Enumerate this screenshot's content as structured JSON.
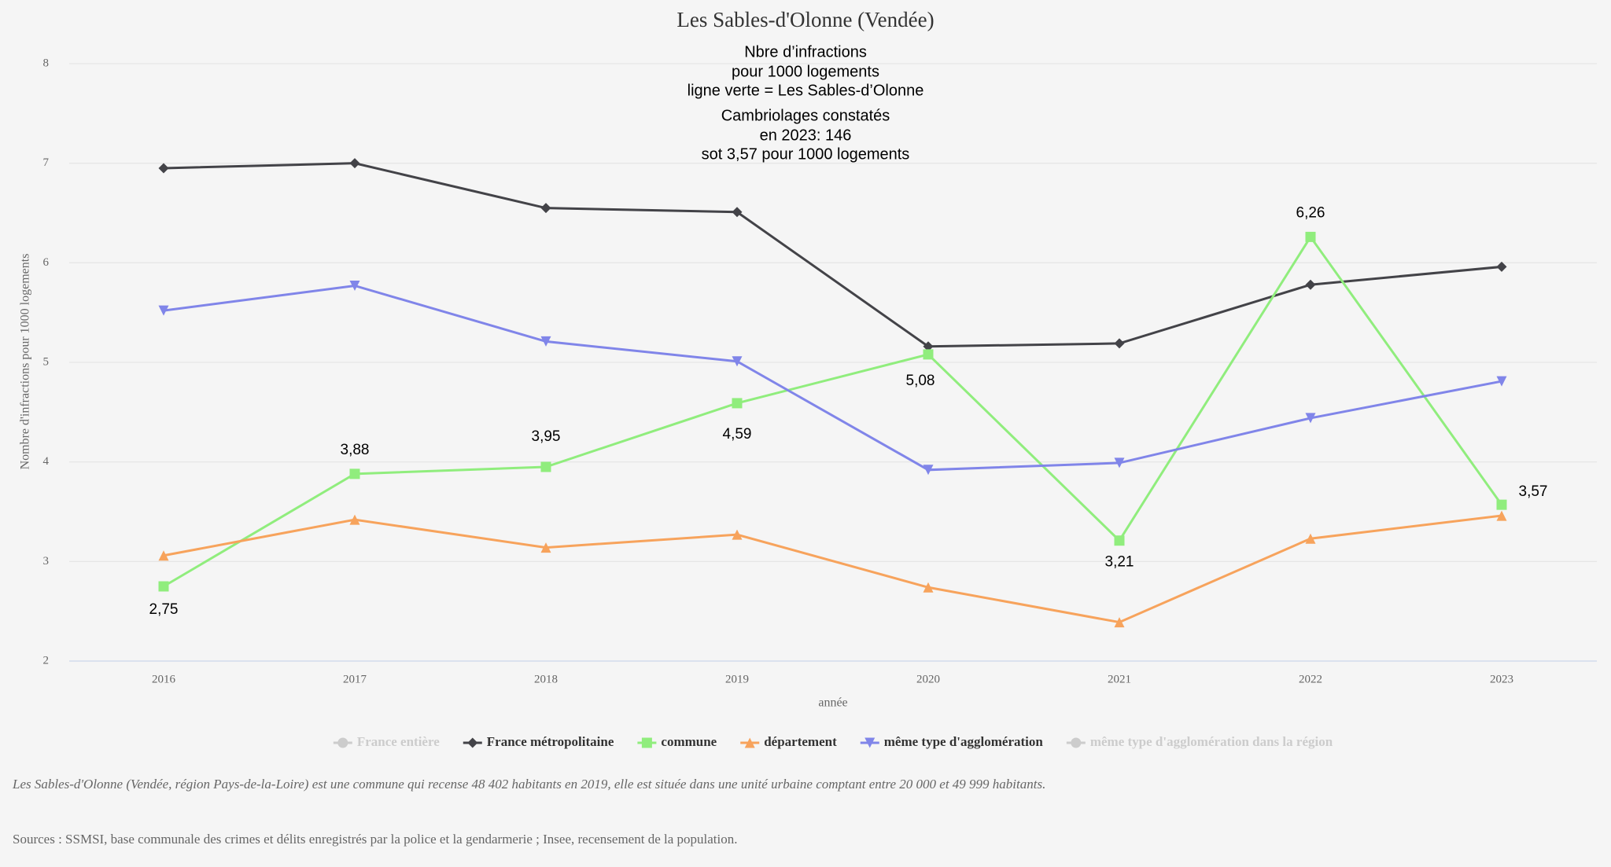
{
  "chart_data": {
    "type": "line",
    "title": "Les Sables-d'Olonne (Vendée)",
    "annotation": [
      "Nbre d’infractions",
      "pour 1000 logements",
      "ligne verte = Les Sables-d’Olonne",
      "Cambriolages constatés",
      "en 2023: 146",
      "sot 3,57 pour 1000 logements"
    ],
    "y_label": "Nombre d'infractions pour 1000 logements",
    "x_label": "année",
    "categories": [
      "2016",
      "2017",
      "2018",
      "2019",
      "2020",
      "2021",
      "2022",
      "2023"
    ],
    "ylim": [
      2,
      8
    ],
    "yticks": [
      2,
      3,
      4,
      5,
      6,
      7,
      8
    ],
    "grid": true,
    "series": [
      {
        "name": "France métropolitaine",
        "color": "#434348",
        "marker": "diamond",
        "values": [
          6.95,
          7.0,
          6.55,
          6.51,
          5.16,
          5.19,
          5.78,
          5.96
        ]
      },
      {
        "name": "commune",
        "color": "#90ed7d",
        "marker": "square",
        "values": [
          2.75,
          3.88,
          3.95,
          4.59,
          5.08,
          3.21,
          6.26,
          3.57
        ],
        "value_labels": [
          "2,75",
          "3,88",
          "3,95",
          "4,59",
          "5,08",
          "3,21",
          "6,26",
          "3,57"
        ]
      },
      {
        "name": "département",
        "color": "#f7a35c",
        "marker": "triangle",
        "values": [
          3.06,
          3.42,
          3.14,
          3.27,
          2.74,
          2.39,
          3.23,
          3.46
        ]
      },
      {
        "name": "même type d'agglomération",
        "color": "#8085e9",
        "marker": "triangle-down",
        "values": [
          5.52,
          5.77,
          5.21,
          5.01,
          3.92,
          3.99,
          4.44,
          4.81
        ]
      }
    ],
    "hidden_series": [
      {
        "name": "France entière",
        "color": "#cccccc"
      },
      {
        "name": "même type d'agglomération dans la région",
        "color": "#cccccc"
      }
    ],
    "footnote": "Les Sables-d'Olonne (Vendée, région Pays-de-la-Loire) est une commune qui recense 48 402 habitants en 2019, elle est située dans une unité urbaine comptant entre 20 000 et 49 999 habitants.",
    "sources": "Sources : SSMSI, base communale des crimes et délits enregistrés par la police et la gendarmerie ; Insee, recensement de la population."
  }
}
